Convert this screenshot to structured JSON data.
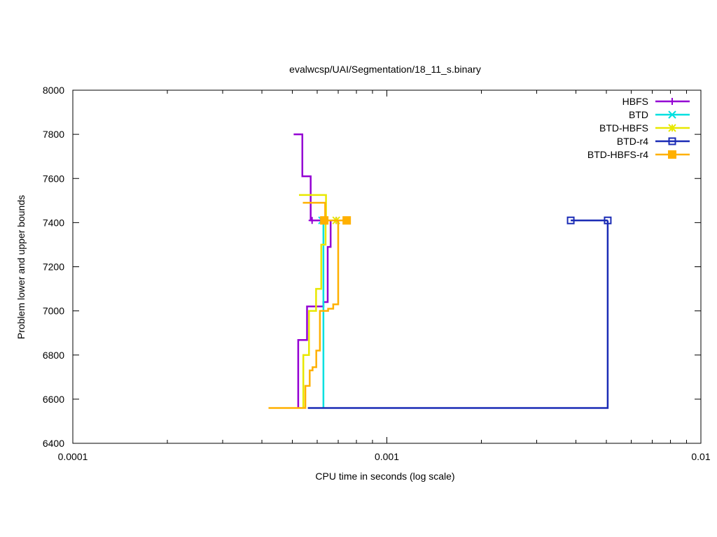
{
  "chart_data": {
    "type": "line",
    "title": "evalwcsp/UAI/Segmentation/18_11_s.binary",
    "xlabel": "CPU time in seconds (log scale)",
    "ylabel": "Problem lower and upper bounds",
    "x_scale": "log",
    "xlim": [
      0.0001,
      0.01
    ],
    "ylim": [
      6400,
      8000
    ],
    "x_ticks": [
      {
        "value": 0.0001,
        "label": "0.0001"
      },
      {
        "value": 0.001,
        "label": "0.001"
      },
      {
        "value": 0.01,
        "label": "0.01"
      }
    ],
    "y_ticks": [
      {
        "value": 6400,
        "label": "6400"
      },
      {
        "value": 6600,
        "label": "6600"
      },
      {
        "value": 6800,
        "label": "6800"
      },
      {
        "value": 7000,
        "label": "7000"
      },
      {
        "value": 7200,
        "label": "7200"
      },
      {
        "value": 7400,
        "label": "7400"
      },
      {
        "value": 7600,
        "label": "7600"
      },
      {
        "value": 7800,
        "label": "7800"
      },
      {
        "value": 8000,
        "label": "8000"
      }
    ],
    "legend_position": "top-right",
    "series": [
      {
        "name": "HBFS",
        "color": "#9400d3",
        "marker": "plus",
        "lower": [
          [
            0.000522,
            6560
          ],
          [
            0.000522,
            6868
          ],
          [
            0.000557,
            6868
          ],
          [
            0.000557,
            7020
          ],
          [
            0.000628,
            7020
          ],
          [
            0.000628,
            7040
          ],
          [
            0.000648,
            7040
          ],
          [
            0.000648,
            7290
          ],
          [
            0.000662,
            7290
          ],
          [
            0.000662,
            7410
          ]
        ],
        "upper": [
          [
            0.000505,
            7800
          ],
          [
            0.000538,
            7800
          ],
          [
            0.000538,
            7610
          ],
          [
            0.000572,
            7610
          ],
          [
            0.000572,
            7410
          ],
          [
            0.00069,
            7410
          ]
        ],
        "markers": [
          [
            0.000578,
            7410
          ],
          [
            0.00069,
            7410
          ]
        ]
      },
      {
        "name": "BTD",
        "color": "#00e0e0",
        "marker": "cross",
        "lower": [
          [
            0.000628,
            6560
          ],
          [
            0.000628,
            7410
          ]
        ],
        "upper": [
          [
            0.000615,
            7410
          ],
          [
            0.000628,
            7410
          ]
        ],
        "markers": [
          [
            0.000622,
            7410
          ]
        ]
      },
      {
        "name": "BTD-HBFS",
        "color": "#e8e800",
        "marker": "star",
        "lower": [
          [
            0.000542,
            6560
          ],
          [
            0.000542,
            6800
          ],
          [
            0.000565,
            6800
          ],
          [
            0.000565,
            7000
          ],
          [
            0.000595,
            7000
          ],
          [
            0.000595,
            7100
          ],
          [
            0.000618,
            7100
          ],
          [
            0.000618,
            7300
          ],
          [
            0.000638,
            7300
          ],
          [
            0.000638,
            7410
          ]
        ],
        "upper": [
          [
            0.000525,
            7525
          ],
          [
            0.00064,
            7525
          ],
          [
            0.00064,
            7410
          ],
          [
            0.00069,
            7410
          ]
        ],
        "markers": [
          [
            0.00069,
            7410
          ]
        ]
      },
      {
        "name": "BTD-r4",
        "color": "#1a2bb5",
        "marker": "open-square",
        "lower": [
          [
            0.00056,
            6560
          ],
          [
            0.00505,
            6560
          ],
          [
            0.00505,
            7410
          ]
        ],
        "upper": [
          [
            0.00385,
            7410
          ],
          [
            0.00505,
            7410
          ]
        ],
        "markers": [
          [
            0.00385,
            7410
          ],
          [
            0.00505,
            7410
          ]
        ]
      },
      {
        "name": "BTD-HBFS-r4",
        "color": "#ffb000",
        "marker": "filled-square",
        "lower": [
          [
            0.00042,
            6560
          ],
          [
            0.00055,
            6560
          ],
          [
            0.00055,
            6660
          ],
          [
            0.000568,
            6660
          ],
          [
            0.000568,
            6730
          ],
          [
            0.00058,
            6730
          ],
          [
            0.00058,
            6745
          ],
          [
            0.000596,
            6745
          ],
          [
            0.000596,
            6820
          ],
          [
            0.000612,
            6820
          ],
          [
            0.000612,
            7000
          ],
          [
            0.00065,
            7000
          ],
          [
            0.00065,
            7010
          ],
          [
            0.000675,
            7010
          ],
          [
            0.000675,
            7030
          ],
          [
            0.0007,
            7030
          ],
          [
            0.0007,
            7410
          ]
        ],
        "upper": [
          [
            0.00054,
            7490
          ],
          [
            0.000636,
            7490
          ],
          [
            0.000636,
            7410
          ],
          [
            0.000745,
            7410
          ]
        ],
        "markers": [
          [
            0.000632,
            7410
          ],
          [
            0.000745,
            7410
          ]
        ]
      }
    ]
  }
}
